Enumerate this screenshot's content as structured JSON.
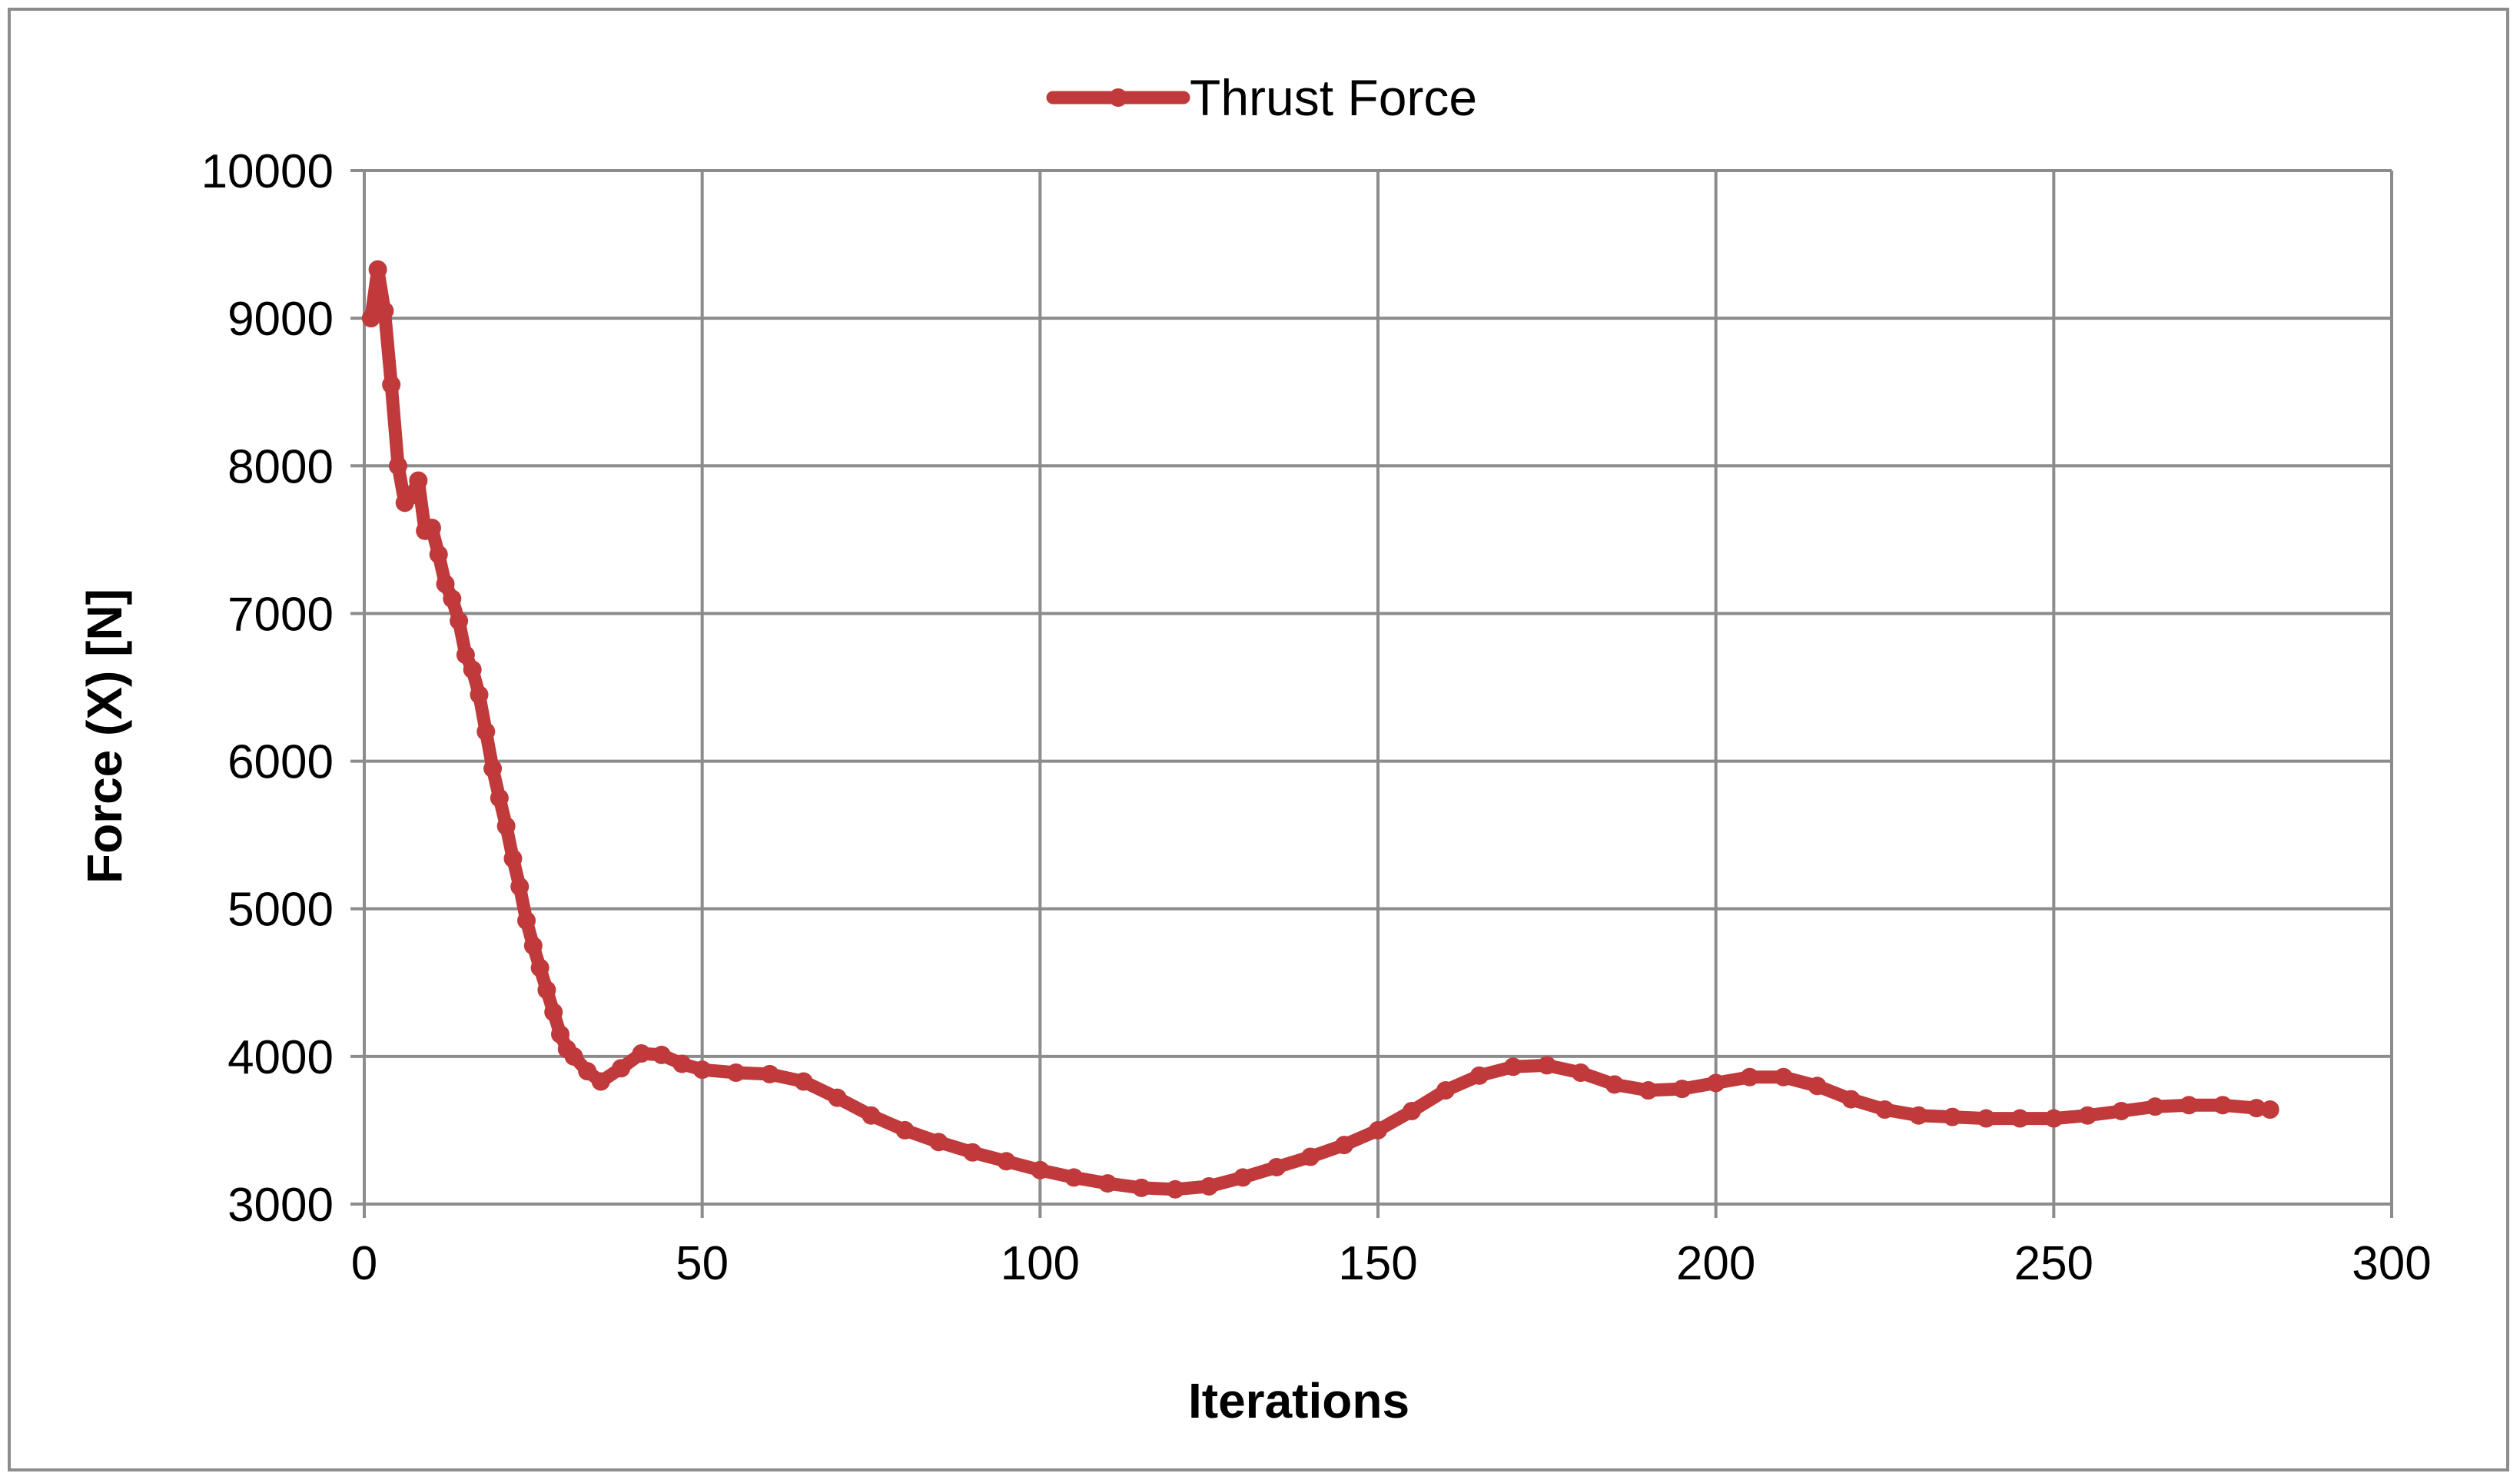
{
  "chart_data": {
    "type": "line",
    "xlabel": "Iterations",
    "ylabel": "Force (X) [N]",
    "xlim": [
      0,
      300
    ],
    "ylim": [
      3000,
      10000
    ],
    "x_ticks": [
      0,
      50,
      100,
      150,
      200,
      250,
      300
    ],
    "y_ticks": [
      3000,
      4000,
      5000,
      6000,
      7000,
      8000,
      9000,
      10000
    ],
    "grid": true,
    "legend_position": "top-center",
    "series": [
      {
        "name": "Thrust Force",
        "color": "#c0393b",
        "points": [
          [
            1,
            9000
          ],
          [
            2,
            9330
          ],
          [
            3,
            9050
          ],
          [
            4,
            8550
          ],
          [
            5,
            8000
          ],
          [
            6,
            7750
          ],
          [
            7,
            7800
          ],
          [
            8,
            7900
          ],
          [
            9,
            7560
          ],
          [
            10,
            7580
          ],
          [
            11,
            7400
          ],
          [
            12,
            7200
          ],
          [
            13,
            7100
          ],
          [
            14,
            6950
          ],
          [
            15,
            6720
          ],
          [
            16,
            6620
          ],
          [
            17,
            6450
          ],
          [
            18,
            6200
          ],
          [
            19,
            5950
          ],
          [
            20,
            5750
          ],
          [
            21,
            5560
          ],
          [
            22,
            5340
          ],
          [
            23,
            5150
          ],
          [
            24,
            4920
          ],
          [
            25,
            4750
          ],
          [
            26,
            4600
          ],
          [
            27,
            4450
          ],
          [
            28,
            4300
          ],
          [
            29,
            4150
          ],
          [
            30,
            4050
          ],
          [
            31,
            4000
          ],
          [
            33,
            3900
          ],
          [
            35,
            3830
          ],
          [
            38,
            3920
          ],
          [
            41,
            4020
          ],
          [
            44,
            4010
          ],
          [
            47,
            3950
          ],
          [
            50,
            3910
          ],
          [
            55,
            3890
          ],
          [
            60,
            3880
          ],
          [
            65,
            3830
          ],
          [
            70,
            3720
          ],
          [
            75,
            3600
          ],
          [
            80,
            3500
          ],
          [
            85,
            3420
          ],
          [
            90,
            3350
          ],
          [
            95,
            3290
          ],
          [
            100,
            3230
          ],
          [
            105,
            3180
          ],
          [
            110,
            3140
          ],
          [
            115,
            3110
          ],
          [
            120,
            3100
          ],
          [
            125,
            3120
          ],
          [
            130,
            3180
          ],
          [
            135,
            3250
          ],
          [
            140,
            3320
          ],
          [
            145,
            3400
          ],
          [
            150,
            3500
          ],
          [
            155,
            3630
          ],
          [
            160,
            3770
          ],
          [
            165,
            3870
          ],
          [
            170,
            3930
          ],
          [
            175,
            3940
          ],
          [
            180,
            3890
          ],
          [
            185,
            3810
          ],
          [
            190,
            3770
          ],
          [
            195,
            3780
          ],
          [
            200,
            3820
          ],
          [
            205,
            3860
          ],
          [
            210,
            3860
          ],
          [
            215,
            3800
          ],
          [
            220,
            3710
          ],
          [
            225,
            3640
          ],
          [
            230,
            3600
          ],
          [
            235,
            3590
          ],
          [
            240,
            3580
          ],
          [
            245,
            3580
          ],
          [
            250,
            3580
          ],
          [
            255,
            3600
          ],
          [
            260,
            3630
          ],
          [
            265,
            3660
          ],
          [
            270,
            3670
          ],
          [
            275,
            3670
          ],
          [
            280,
            3650
          ],
          [
            282,
            3640
          ]
        ]
      }
    ]
  }
}
